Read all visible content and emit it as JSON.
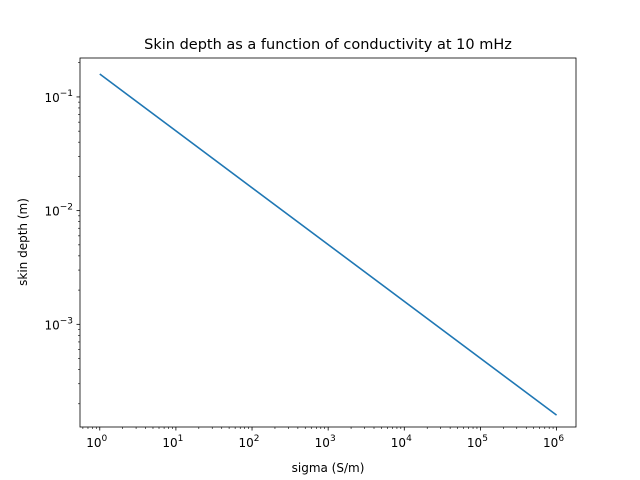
{
  "chart_data": {
    "type": "line",
    "title": "Skin depth as a function of conductivity at 10 mHz",
    "xlabel": "sigma (S/m)",
    "ylabel": "skin depth (m)",
    "xscale": "log",
    "yscale": "log",
    "xlim": [
      0.55,
      1800000.0
    ],
    "ylim": [
      0.000125,
      0.22
    ],
    "x_ticks": [
      {
        "base": "10",
        "exp": "0",
        "value": 1
      },
      {
        "base": "10",
        "exp": "1",
        "value": 10
      },
      {
        "base": "10",
        "exp": "2",
        "value": 100
      },
      {
        "base": "10",
        "exp": "3",
        "value": 1000
      },
      {
        "base": "10",
        "exp": "4",
        "value": 10000
      },
      {
        "base": "10",
        "exp": "5",
        "value": 100000
      },
      {
        "base": "10",
        "exp": "6",
        "value": 1000000
      }
    ],
    "y_ticks": [
      {
        "base": "10",
        "exp": "−1",
        "value": 0.1
      },
      {
        "base": "10",
        "exp": "−2",
        "value": 0.01
      },
      {
        "base": "10",
        "exp": "−3",
        "value": 0.001
      }
    ],
    "grid": false,
    "series": [
      {
        "color": "#1f77b4",
        "x": [
          1,
          1000000
        ],
        "y": [
          0.159,
          0.000159
        ]
      }
    ]
  }
}
